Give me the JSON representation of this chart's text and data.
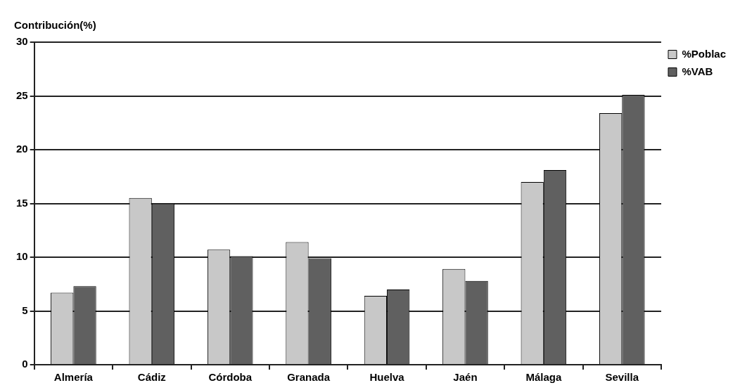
{
  "chart_data": {
    "type": "bar",
    "ylabel": "Contribución(%)",
    "categories": [
      "Almería",
      "Cádiz",
      "Córdoba",
      "Granada",
      "Huelva",
      "Jaén",
      "Málaga",
      "Sevilla"
    ],
    "series": [
      {
        "name": "%Poblac",
        "color": "#c8c8c8",
        "values": [
          6.7,
          15.5,
          10.7,
          11.4,
          6.4,
          8.9,
          17.0,
          23.4
        ]
      },
      {
        "name": "%VAB",
        "color": "#606060",
        "values": [
          7.3,
          15.0,
          10.1,
          9.9,
          7.0,
          7.8,
          18.1,
          25.1
        ]
      }
    ],
    "ylim": [
      0,
      30
    ],
    "yticks": [
      0,
      5,
      10,
      15,
      20,
      25,
      30
    ],
    "grid": "y",
    "legend": "top right"
  }
}
